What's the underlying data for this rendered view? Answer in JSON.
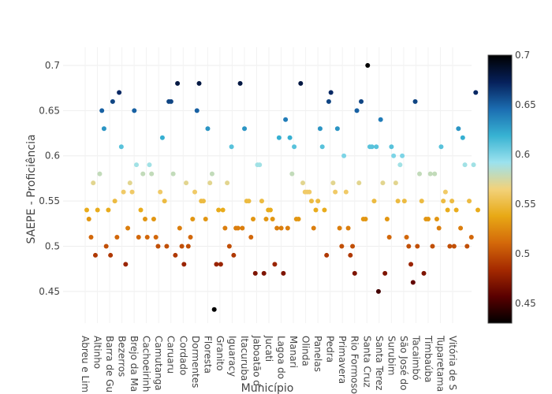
{
  "chart_data": {
    "type": "scatter",
    "xlabel": "Município",
    "ylabel": "SAEPE - Proficiência",
    "ylim": [
      0.415,
      0.72
    ],
    "yticks": [
      "0.45",
      "0.5",
      "0.55",
      "0.6",
      "0.65",
      "0.7"
    ],
    "x_tick_labels": [
      "Abreu e Lim",
      "Altinho",
      "Barra de Gu",
      "Bezerros",
      "Brejo da Ma",
      "Cachoeirinh",
      "Camutanga",
      "Caruaru",
      "Cordado",
      "Dormentes",
      "Floresta",
      "Granito",
      "Iguaracy",
      "Itacuruba",
      "Jaboatão d",
      "Jucati",
      "Lagoa do",
      "Manari",
      "Olinda",
      "Panelas",
      "Pedra",
      "Primavera",
      "Rio Formoso",
      "Santa Cruz",
      "Santa Terez",
      "Surubim",
      "São José do",
      "Tacaimbó",
      "Timbaúba",
      "Tuparetama",
      "Vitória de S"
    ],
    "colorbar": {
      "range": [
        0.43,
        0.7
      ],
      "ticks": [
        "0.45",
        "0.5",
        "0.55",
        "0.6",
        "0.65",
        "0.7"
      ],
      "colorscale": [
        "#000000",
        "#5a0000",
        "#a52a00",
        "#d4690a",
        "#e8a915",
        "#f2d27a",
        "#9be2ee",
        "#37b2d2",
        "#1b6cb0",
        "#06205a",
        "#000000"
      ]
    },
    "points": [
      0.54,
      0.53,
      0.51,
      0.57,
      0.49,
      0.54,
      0.58,
      0.65,
      0.63,
      0.5,
      0.54,
      0.49,
      0.66,
      0.55,
      0.51,
      0.67,
      0.61,
      0.56,
      0.48,
      0.52,
      0.57,
      0.56,
      0.65,
      0.59,
      0.51,
      0.54,
      0.58,
      0.53,
      0.51,
      0.59,
      0.58,
      0.53,
      0.51,
      0.5,
      0.56,
      0.62,
      0.55,
      0.5,
      0.66,
      0.66,
      0.58,
      0.49,
      0.68,
      0.52,
      0.5,
      0.48,
      0.57,
      0.5,
      0.51,
      0.53,
      0.56,
      0.65,
      0.68,
      0.55,
      0.55,
      0.53,
      0.63,
      0.57,
      0.58,
      0.43,
      0.48,
      0.54,
      0.48,
      0.54,
      0.52,
      0.57,
      0.5,
      0.61,
      0.49,
      0.52,
      0.52,
      0.68,
      0.52,
      0.63,
      0.55,
      0.55,
      0.51,
      0.53,
      0.47,
      0.59,
      0.59,
      0.55,
      0.47,
      0.53,
      0.54,
      0.54,
      0.53,
      0.48,
      0.52,
      0.62,
      0.52,
      0.47,
      0.64,
      0.52,
      0.62,
      0.58,
      0.61,
      0.53,
      0.53,
      0.68,
      0.57,
      0.56,
      0.56,
      0.56,
      0.55,
      0.52,
      0.54,
      0.55,
      0.63,
      0.61,
      0.54,
      0.49,
      0.66,
      0.67,
      0.57,
      0.56,
      0.63,
      0.52,
      0.5,
      0.6,
      0.56,
      0.52,
      0.49,
      0.5,
      0.47,
      0.65,
      0.57,
      0.66,
      0.53,
      0.53,
      0.7,
      0.61,
      0.61,
      0.55,
      0.61,
      0.45,
      0.64,
      0.57,
      0.47,
      0.53,
      0.51,
      0.61,
      0.6,
      0.57,
      0.55,
      0.59,
      0.6,
      0.55,
      0.51,
      0.5,
      0.48,
      0.46,
      0.66,
      0.5,
      0.58,
      0.55,
      0.47,
      0.53,
      0.53,
      0.58,
      0.5,
      0.58,
      0.53,
      0.52,
      0.61,
      0.55,
      0.56,
      0.54,
      0.5,
      0.55,
      0.5,
      0.54,
      0.63,
      0.52,
      0.62,
      0.59,
      0.5,
      0.55,
      0.51,
      0.59,
      0.67,
      0.54
    ]
  }
}
